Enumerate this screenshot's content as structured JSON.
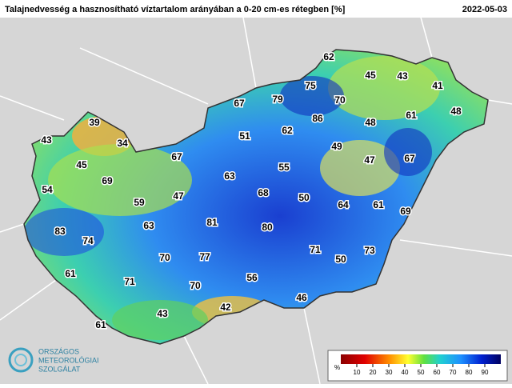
{
  "header": {
    "title": "Talajnedvesség a hasznosítható víztartalom arányában a 0-20 cm-es rétegben [%]",
    "date": "2022-05-03"
  },
  "stations": [
    62,
    45,
    43,
    41,
    75,
    79,
    70,
    67,
    86,
    48,
    61,
    48,
    39,
    62,
    51,
    49,
    43,
    34,
    67,
    55,
    47,
    67,
    45,
    69,
    63,
    68,
    54,
    47,
    50,
    64,
    61,
    59,
    69,
    81,
    80,
    63,
    83,
    74,
    71,
    73,
    50,
    70,
    77,
    61,
    71,
    56,
    70,
    46,
    42,
    43,
    61
  ],
  "legend": {
    "unit": "%",
    "ticks": [
      10,
      20,
      30,
      40,
      50,
      60,
      70,
      80,
      90
    ]
  },
  "logo": {
    "lines": [
      "ORSZÁGOS",
      "METEOROLÓGIAI",
      "SZOLGÁLAT"
    ]
  }
}
